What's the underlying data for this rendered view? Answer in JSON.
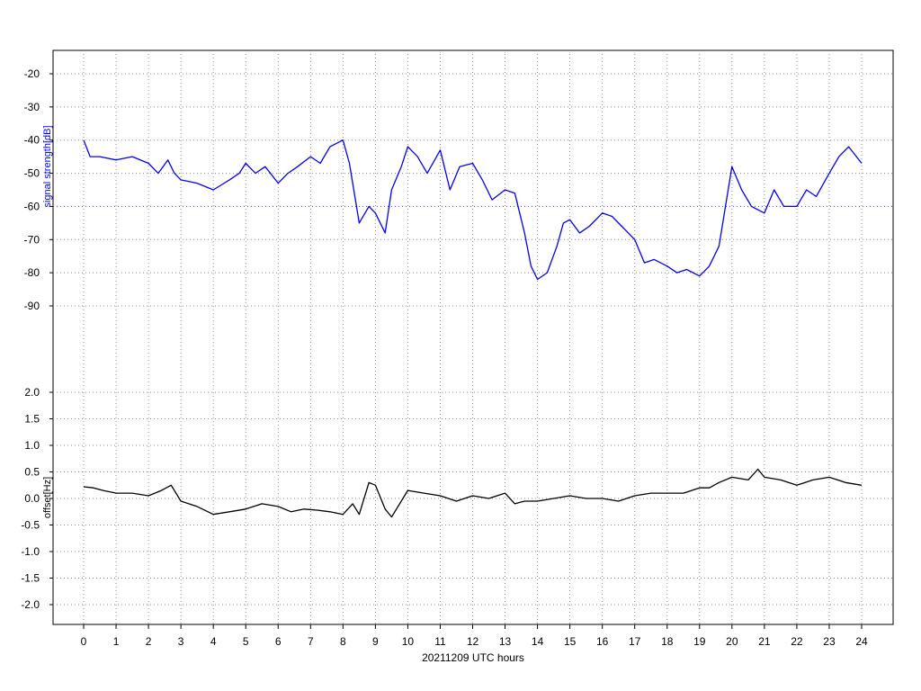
{
  "chart_data": [
    {
      "type": "line",
      "panel": "top",
      "ylabel": "signal strength[dB]",
      "ylabel_color": "#0000ff",
      "line_color": "#0000ff",
      "y_ticks": [
        -20,
        -30,
        -40,
        -50,
        -60,
        -70,
        -80,
        -90
      ],
      "y_tick_labels": [
        "-20",
        "-30",
        "-40",
        "-50",
        "-60",
        "-70",
        "-80",
        "-90"
      ],
      "blue_gridline_at": -60,
      "ylim": [
        -100,
        -15
      ],
      "grid": true,
      "series": [
        {
          "x": [
            0,
            0.2,
            0.5,
            1,
            1.5,
            2,
            2.3,
            2.6,
            2.8,
            3,
            3.5,
            4,
            4.5,
            4.8,
            5,
            5.3,
            5.6,
            6,
            6.3,
            6.6,
            7,
            7.3,
            7.6,
            8,
            8.2,
            8.5,
            8.8,
            9,
            9.3,
            9.5,
            9.8,
            10,
            10.3,
            10.6,
            11,
            11.3,
            11.6,
            12,
            12.3,
            12.6,
            13,
            13.3,
            13.6,
            13.8,
            14,
            14.3,
            14.6,
            14.8,
            15,
            15.3,
            15.6,
            16,
            16.3,
            16.6,
            17,
            17.3,
            17.6,
            18,
            18.3,
            18.6,
            19,
            19.3,
            19.6,
            19.8,
            20,
            20.3,
            20.6,
            21,
            21.3,
            21.6,
            22,
            22.3,
            22.6,
            23,
            23.3,
            23.6,
            24
          ],
          "y": [
            -40,
            -45,
            -45,
            -46,
            -45,
            -47,
            -50,
            -46,
            -50,
            -52,
            -53,
            -55,
            -52,
            -50,
            -47,
            -50,
            -48,
            -53,
            -50,
            -48,
            -45,
            -47,
            -42,
            -40,
            -47,
            -65,
            -60,
            -62,
            -68,
            -55,
            -48,
            -42,
            -45,
            -50,
            -43,
            -55,
            -48,
            -47,
            -52,
            -58,
            -55,
            -56,
            -68,
            -78,
            -82,
            -80,
            -72,
            -65,
            -64,
            -68,
            -66,
            -62,
            -63,
            -66,
            -70,
            -77,
            -76,
            -78,
            -80,
            -79,
            -81,
            -78,
            -72,
            -60,
            -48,
            -55,
            -60,
            -62,
            -55,
            -60,
            -60,
            -55,
            -57,
            -50,
            -45,
            -42,
            -47
          ]
        }
      ]
    },
    {
      "type": "line",
      "panel": "bottom",
      "ylabel": "offset[Hz]",
      "ylabel_color": "#000000",
      "line_color": "#000000",
      "y_ticks": [
        2.0,
        1.5,
        1.0,
        0.5,
        0.0,
        -0.5,
        -1.0,
        -1.5,
        -2.0
      ],
      "y_tick_labels": [
        "2.0",
        "1.5",
        "1.0",
        "0.5",
        "0.0",
        "-0.5",
        "-1.0",
        "-1.5",
        "-2.0"
      ],
      "ylim": [
        -2.4,
        2.2
      ],
      "grid": true,
      "series": [
        {
          "x": [
            0,
            0.3,
            0.6,
            1,
            1.5,
            2,
            2.4,
            2.7,
            3,
            3.5,
            4,
            4.5,
            5,
            5.5,
            6,
            6.4,
            6.8,
            7.2,
            7.6,
            8,
            8.3,
            8.5,
            8.8,
            9,
            9.3,
            9.5,
            10,
            10.5,
            11,
            11.5,
            12,
            12.5,
            13,
            13.3,
            13.6,
            14,
            14.5,
            15,
            15.5,
            16,
            16.5,
            17,
            17.5,
            18,
            18.5,
            19,
            19.3,
            19.6,
            20,
            20.5,
            20.8,
            21,
            21.5,
            22,
            22.5,
            23,
            23.5,
            24
          ],
          "y": [
            0.22,
            0.2,
            0.15,
            0.1,
            0.1,
            0.05,
            0.15,
            0.25,
            -0.05,
            -0.15,
            -0.3,
            -0.25,
            -0.2,
            -0.1,
            -0.15,
            -0.25,
            -0.2,
            -0.22,
            -0.25,
            -0.3,
            -0.1,
            -0.3,
            0.3,
            0.25,
            -0.2,
            -0.35,
            0.15,
            0.1,
            0.05,
            -0.05,
            0.05,
            0.0,
            0.1,
            -0.1,
            -0.05,
            -0.05,
            0.0,
            0.05,
            0.0,
            0.0,
            -0.05,
            0.05,
            0.1,
            0.1,
            0.1,
            0.2,
            0.2,
            0.3,
            0.4,
            0.35,
            0.55,
            0.4,
            0.35,
            0.25,
            0.35,
            0.4,
            0.3,
            0.25
          ]
        }
      ]
    }
  ],
  "x_axis": {
    "xlabel": "20211209 UTC hours",
    "xlim": [
      0,
      24
    ],
    "ticks": [
      0,
      1,
      2,
      3,
      4,
      5,
      6,
      7,
      8,
      9,
      10,
      11,
      12,
      13,
      14,
      15,
      16,
      17,
      18,
      19,
      20,
      21,
      22,
      23,
      24
    ],
    "tick_labels": [
      "0",
      "1",
      "2",
      "3",
      "4",
      "5",
      "6",
      "7",
      "8",
      "9",
      "10",
      "11",
      "12",
      "13",
      "14",
      "15",
      "16",
      "17",
      "18",
      "19",
      "20",
      "21",
      "22",
      "23",
      "24"
    ]
  }
}
